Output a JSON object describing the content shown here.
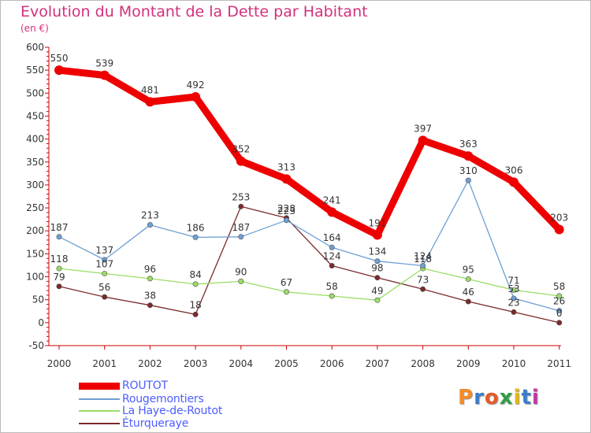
{
  "header": {
    "title": "Evolution du Montant de la Dette par Habitant",
    "subtitle": "(en €)"
  },
  "logo": {
    "text": "Proxiti",
    "colors": [
      "#f28c28",
      "#3a7dc9",
      "#e05c2a",
      "#2f9e44",
      "#e6b800",
      "#3a7dc9",
      "#c0399e"
    ]
  },
  "chart_data": {
    "type": "line",
    "categories": [
      "2000",
      "2001",
      "2002",
      "2003",
      "2004",
      "2005",
      "2006",
      "2007",
      "2008",
      "2009",
      "2010",
      "2011"
    ],
    "yticks": [
      "600",
      "550",
      "500",
      "450",
      "400",
      "350",
      "300",
      "250",
      "200",
      "150",
      "100",
      "50",
      "0",
      "-50"
    ],
    "ylim": [
      -50,
      600
    ],
    "grid": false,
    "legend_position": "bottom-left",
    "series": [
      {
        "name": "ROUTOT",
        "color": "#ee0000",
        "values": [
          550,
          539,
          481,
          492,
          352,
          313,
          241,
          191,
          397,
          363,
          306,
          203
        ]
      },
      {
        "name": "Rougemontiers",
        "color": "#6d9fd4",
        "values": [
          187,
          137,
          213,
          186,
          187,
          223,
          164,
          134,
          124,
          310,
          53,
          26
        ]
      },
      {
        "name": "La Haye-de-Routot",
        "color": "#99dd66",
        "values": [
          118,
          107,
          96,
          84,
          90,
          67,
          58,
          49,
          118,
          95,
          71,
          58
        ]
      },
      {
        "name": "Éturqueraye",
        "color": "#7a2a2a",
        "values": [
          79,
          56,
          38,
          18,
          253,
          228,
          124,
          98,
          73,
          46,
          23,
          0
        ]
      }
    ]
  }
}
